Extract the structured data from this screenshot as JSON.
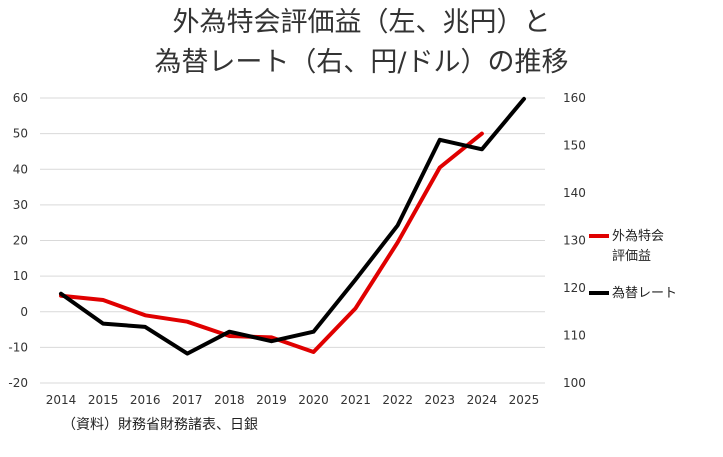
{
  "chart_data": {
    "type": "line",
    "title_lines": [
      "外為特会評価益（左、兆円）と",
      "為替レート（右、円/ドル）の推移"
    ],
    "x": [
      2014,
      2015,
      2016,
      2017,
      2018,
      2019,
      2020,
      2021,
      2022,
      2023,
      2024,
      2025
    ],
    "y_left": {
      "lim": [
        -20,
        60
      ],
      "ticks": [
        -20,
        -10,
        0,
        10,
        20,
        30,
        40,
        50,
        60
      ]
    },
    "y_right": {
      "lim": [
        100,
        160
      ],
      "ticks": [
        100,
        110,
        120,
        130,
        140,
        150,
        160
      ]
    },
    "series": [
      {
        "name_lines": [
          "外為特会",
          "評価益"
        ],
        "axis": "left",
        "color": "#e00000",
        "values": [
          4.5,
          3.3,
          -1,
          -2.8,
          -6.8,
          -7.2,
          -11.3,
          1,
          19.5,
          40.5,
          50,
          null
        ]
      },
      {
        "name_lines": [
          "為替レート"
        ],
        "axis": "right",
        "color": "#000000",
        "values": [
          118.8,
          112.5,
          111.8,
          106.2,
          110.8,
          108.8,
          110.8,
          121.8,
          133.2,
          151.2,
          149.2,
          159.8
        ]
      }
    ],
    "grid": "horizontal",
    "legend_position": "right"
  },
  "source": "（資料）財務省財務諸表、日銀"
}
